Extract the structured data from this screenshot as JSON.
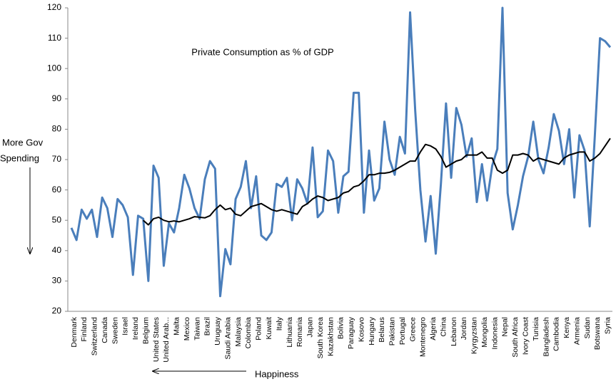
{
  "chart_data": {
    "type": "line",
    "annotations": [
      "Private Consumption as % of GDP",
      "More Gov",
      "Spending",
      "Happiness"
    ],
    "categories": [
      "Denmark",
      null,
      "Finland",
      null,
      "Switzerland",
      null,
      "Canada",
      null,
      "Sweden",
      null,
      "Israel",
      null,
      "Ireland",
      null,
      "Belgium",
      null,
      "United States",
      null,
      "United Arab...",
      null,
      "Malta",
      null,
      "Mexico",
      null,
      "Taiwan",
      null,
      "Brazil",
      null,
      "Uruguay",
      null,
      "Saudi Arabia",
      null,
      "Malaysia",
      null,
      "Colombia",
      null,
      "Poland",
      null,
      "Kuwait",
      null,
      "Italy",
      null,
      "Lithuania",
      null,
      "Romania",
      null,
      "Japan",
      null,
      "South Korea",
      null,
      "Kazakhstan",
      null,
      "Bolivia",
      null,
      "Paraguay",
      null,
      "Kosovo",
      null,
      "Hungary",
      null,
      "Belarus",
      null,
      "Pakistan",
      null,
      "Portugal",
      null,
      "Greece",
      null,
      "Montenegro",
      null,
      "Algeria",
      null,
      "China",
      null,
      "Lebanon",
      null,
      "Jordan",
      null,
      "Kyrgyzstan",
      null,
      "Mongolia",
      null,
      "Indonesia",
      null,
      "Nepal",
      null,
      "South Africa",
      null,
      "Ivory Coast",
      null,
      "Tunisia",
      null,
      "Bangladesh",
      null,
      "Cambodia",
      null,
      "Kenya",
      null,
      "Armenia",
      null,
      "Sudan",
      null,
      "Botswana",
      null,
      "Syria",
      null
    ],
    "series": [
      {
        "color": "#4a7ebb",
        "values": [
          47.5,
          43.5,
          53.5,
          50.5,
          53.5,
          44.5,
          57.5,
          54,
          44.5,
          57,
          55,
          51,
          32,
          51.5,
          50.5,
          30,
          68,
          64,
          35,
          49,
          46,
          54,
          65,
          60.5,
          54,
          50.5,
          63.5,
          69.5,
          67,
          25,
          40.5,
          35.5,
          57,
          61,
          69.5,
          54,
          64.5,
          45,
          43.5,
          46,
          62,
          61,
          64,
          50,
          63.5,
          60.5,
          55.5,
          74,
          51,
          53,
          73,
          69.5,
          52.5,
          64.5,
          66,
          92,
          92,
          52.5,
          73,
          56.5,
          60.5,
          82.5,
          70,
          65,
          77.5,
          72,
          118.5,
          86,
          60,
          43,
          58,
          39,
          62,
          88.5,
          64,
          87,
          81.5,
          71,
          77,
          56,
          68.5,
          56.5,
          68,
          73.5,
          120,
          59,
          47,
          55,
          64.5,
          71,
          82.5,
          70,
          65.5,
          74,
          85,
          79.5,
          68.5,
          80,
          57.5,
          78,
          73,
          48,
          78,
          110,
          109,
          107
        ]
      },
      {
        "color": "#000000",
        "values": [
          null,
          null,
          null,
          null,
          null,
          null,
          null,
          null,
          null,
          null,
          null,
          null,
          null,
          null,
          50,
          48.5,
          50.5,
          51,
          50,
          49.5,
          49.8,
          49.5,
          50,
          50.5,
          51.2,
          51,
          50.8,
          51.5,
          53.5,
          55,
          53.5,
          54,
          52,
          51.5,
          53,
          54.5,
          55,
          55.5,
          54.5,
          53.5,
          53,
          53.5,
          53,
          52.5,
          52,
          54.5,
          55.5,
          57,
          58,
          57.5,
          56.5,
          57,
          57.5,
          59,
          59.5,
          61,
          61.5,
          63,
          65,
          65,
          65.5,
          65.5,
          65.8,
          66.5,
          67.5,
          68.5,
          69.5,
          69.5,
          72.5,
          75,
          74.5,
          73.5,
          71,
          67.5,
          68.5,
          69.5,
          70,
          71.5,
          71.5,
          71.5,
          72.5,
          70.5,
          70.5,
          66.5,
          65.5,
          66.5,
          71.5,
          71.5,
          72,
          71.5,
          69.5,
          70.5,
          70,
          69.5,
          69,
          68.5,
          70.5,
          71.5,
          72,
          72.5,
          72.5,
          69.5,
          70.5,
          72,
          74.5,
          77
        ]
      }
    ],
    "ylim": [
      20,
      120
    ],
    "yticks": [
      20,
      30,
      40,
      50,
      60,
      70,
      80,
      90,
      100,
      110,
      120
    ],
    "grid": false
  }
}
